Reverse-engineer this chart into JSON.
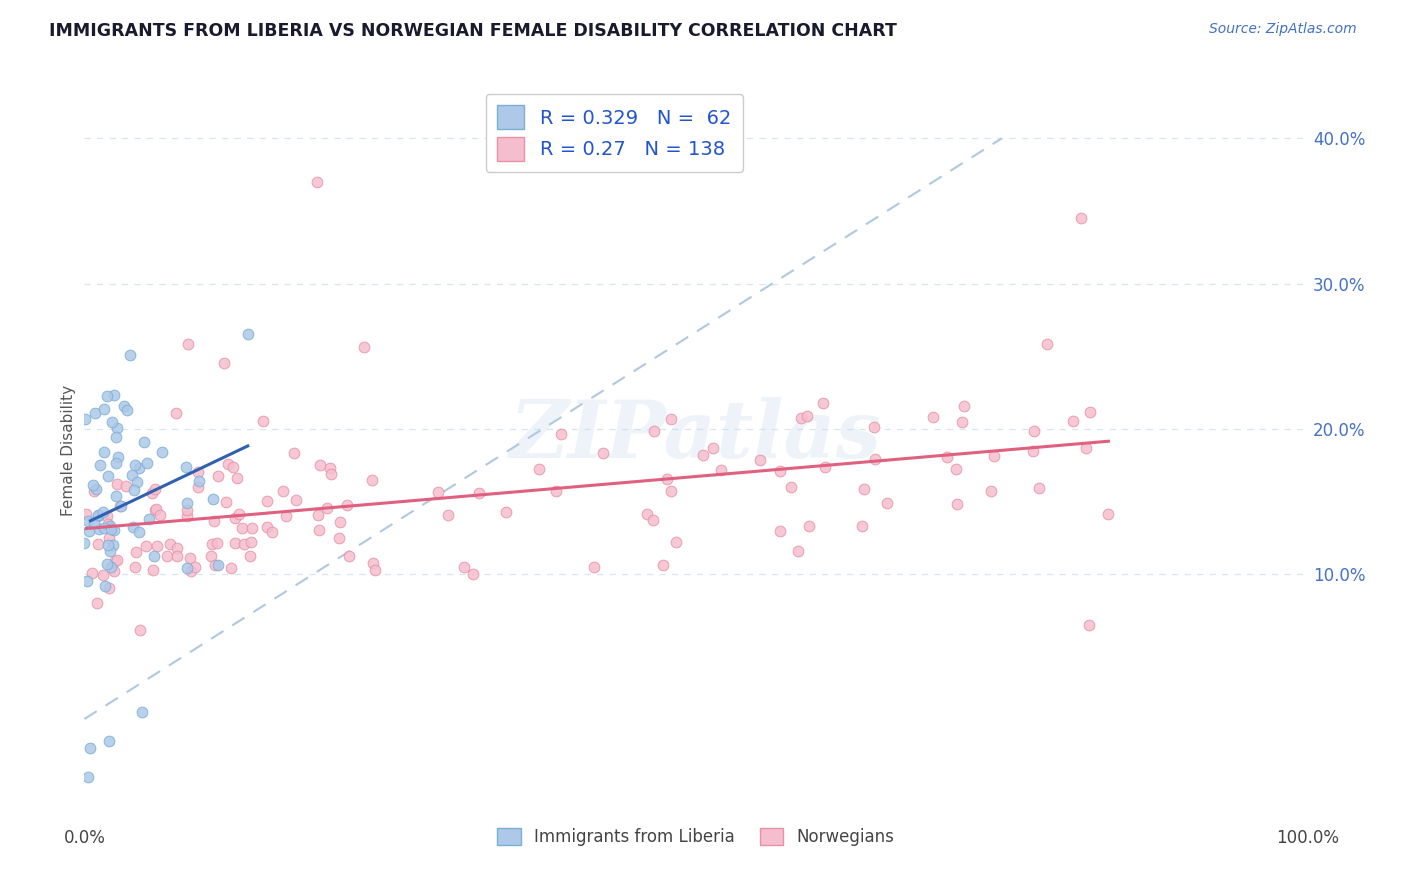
{
  "title": "IMMIGRANTS FROM LIBERIA VS NORWEGIAN FEMALE DISABILITY CORRELATION CHART",
  "source": "Source: ZipAtlas.com",
  "ylabel": "Female Disability",
  "right_yticks": [
    0.1,
    0.2,
    0.3,
    0.4
  ],
  "right_yticklabels": [
    "10.0%",
    "20.0%",
    "30.0%",
    "40.0%"
  ],
  "xlim": [
    0.0,
    1.0
  ],
  "ylim": [
    -0.07,
    0.44
  ],
  "series1_color": "#adc8e8",
  "series1_edge": "#7aafd4",
  "series2_color": "#f5bece",
  "series2_edge": "#e890a8",
  "trendline1_color": "#3060b0",
  "trendline2_color": "#e06080",
  "diagonal_color": "#b0c8e0",
  "R1": 0.329,
  "N1": 62,
  "R2": 0.27,
  "N2": 138,
  "legend_label1": "Immigrants from Liberia",
  "legend_label2": "Norwegians",
  "watermark": "ZIPatlas",
  "background_color": "#ffffff",
  "grid_color": "#d8e4f0",
  "title_color": "#1a1a2e",
  "legend_text_color": "#2255cc",
  "source_color": "#4472c4"
}
